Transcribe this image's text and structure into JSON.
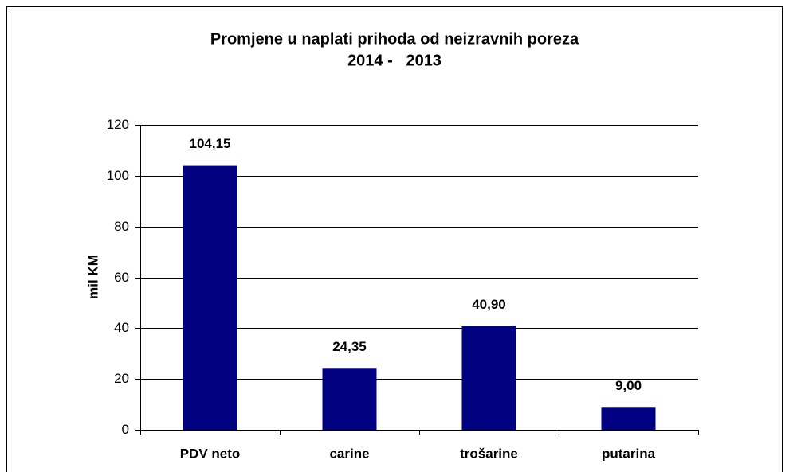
{
  "chart_data": {
    "type": "bar",
    "title": "Promjene u naplati prihoda od neizravnih poreza",
    "subtitle": "2014 -   2013",
    "y_label": "mil KM",
    "categories": [
      "PDV neto",
      "carine",
      "trošarine",
      "putarina"
    ],
    "values": [
      104.15,
      24.35,
      40.9,
      9.0
    ],
    "value_labels": [
      "104,15",
      "24,35",
      "40,90",
      "9,00"
    ],
    "color": "#000080",
    "ylim": [
      0,
      120
    ],
    "yticks": [
      0,
      20,
      40,
      60,
      80,
      100,
      120
    ],
    "grid": true
  }
}
